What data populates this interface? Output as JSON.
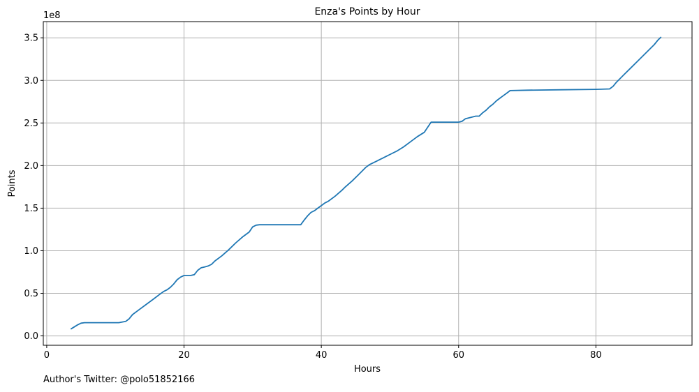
{
  "chart_data": {
    "type": "line",
    "title": "Enza's Points by Hour",
    "xlabel": "Hours",
    "ylabel": "Points",
    "offset_text": "1e8",
    "xlim": [
      -0.5,
      94
    ],
    "ylim": [
      -0.11,
      3.69
    ],
    "y_scale_factor": 100000000,
    "xticks": [
      0,
      20,
      40,
      60,
      80
    ],
    "xtick_labels": [
      "0",
      "20",
      "40",
      "60",
      "80"
    ],
    "yticks": [
      0.0,
      0.5,
      1.0,
      1.5,
      2.0,
      2.5,
      3.0,
      3.5
    ],
    "ytick_labels": [
      "0.0",
      "0.5",
      "1.0",
      "1.5",
      "2.0",
      "2.5",
      "3.0",
      "3.5"
    ],
    "grid": true,
    "line_color": "#1f77b4",
    "series": [
      {
        "x": [
          3.5,
          4.5,
          5.0,
          5.5,
          7,
          9,
          10.5,
          11.5,
          12.0,
          12.5,
          13.5,
          14.5,
          15.5,
          16.5,
          17.0,
          17.5,
          18.0,
          18.5,
          19.0,
          19.5,
          20.0,
          21.0,
          21.5,
          22.0,
          22.5,
          23.0,
          23.5,
          24.0,
          24.5,
          25.5,
          26.5,
          27.5,
          28.5,
          29.5,
          30.0,
          30.5,
          31.0,
          33,
          35,
          36,
          37.0,
          37.5,
          38.0,
          38.5,
          39.0,
          39.5,
          40.5,
          41.0,
          42.0,
          43.0,
          43.5,
          44.5,
          45.5,
          46.5,
          47.0,
          48.0,
          48.5,
          49.0,
          49.5,
          50.0,
          51.0,
          52.0,
          53.0,
          54.0,
          55.0,
          55.5,
          56.0,
          58,
          60.0,
          60.5,
          61.0,
          62.5,
          63.0,
          63.5,
          64.0,
          64.5,
          65.0,
          65.5,
          66.0,
          66.5,
          67.0,
          67.5,
          70,
          75.0,
          80,
          82.0,
          82.5,
          83.0,
          84.0,
          85.0,
          86.0,
          87.0,
          88.0,
          88.5,
          89.0,
          89.5
        ],
        "y": [
          0.08,
          0.13,
          0.15,
          0.155,
          0.155,
          0.155,
          0.155,
          0.17,
          0.2,
          0.25,
          0.31,
          0.37,
          0.43,
          0.49,
          0.52,
          0.54,
          0.57,
          0.61,
          0.66,
          0.69,
          0.71,
          0.71,
          0.72,
          0.77,
          0.8,
          0.81,
          0.82,
          0.84,
          0.88,
          0.94,
          1.01,
          1.09,
          1.16,
          1.22,
          1.28,
          1.3,
          1.305,
          1.305,
          1.305,
          1.305,
          1.305,
          1.36,
          1.41,
          1.45,
          1.47,
          1.5,
          1.56,
          1.58,
          1.64,
          1.71,
          1.75,
          1.82,
          1.9,
          1.98,
          2.01,
          2.05,
          2.07,
          2.09,
          2.11,
          2.13,
          2.17,
          2.22,
          2.28,
          2.34,
          2.39,
          2.45,
          2.51,
          2.51,
          2.51,
          2.52,
          2.55,
          2.58,
          2.58,
          2.62,
          2.65,
          2.69,
          2.72,
          2.76,
          2.79,
          2.82,
          2.85,
          2.88,
          2.885,
          2.89,
          2.895,
          2.9,
          2.93,
          2.98,
          3.06,
          3.14,
          3.22,
          3.3,
          3.38,
          3.42,
          3.47,
          3.51
        ]
      }
    ]
  },
  "footer": {
    "author_note": "Author's Twitter: @polo51852166"
  }
}
